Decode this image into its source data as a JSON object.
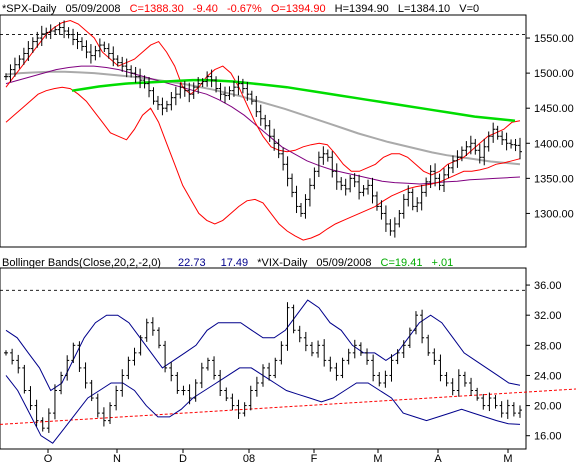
{
  "header_top": {
    "symbol": "*SPX-Daily",
    "date": "05/09/2008",
    "close": "C=1388.30",
    "change": "-9.40",
    "pct": "-0.67%",
    "open": "O=1394.90",
    "high": "H=1394.90",
    "low": "L=1384.10",
    "volume": "V=0",
    "close_color": "#ff0000",
    "change_color": "#ff0000"
  },
  "header_bottom": {
    "indicator": "Bollinger Bands(Close,20,2,-2,0)",
    "upper_val": "22.73",
    "lower_val": "17.49",
    "symbol": "*VIX-Daily",
    "date": "05/09/2008",
    "close": "C=19.41",
    "change": "+.01",
    "value_color": "#00008b",
    "close_color": "#00aa00"
  },
  "colors": {
    "price": "#000000",
    "bollinger": "#ff0000",
    "vix_band": "#00008b",
    "ma_long": "#00dd00",
    "ma_mid": "#aaaaaa",
    "ma_short": "#800080",
    "trendline": "#ff0000"
  },
  "chart_data": [
    {
      "type": "ohlc",
      "name": "SPX-Daily",
      "ylim": [
        1255,
        1580
      ],
      "yticks": [
        "1300.00",
        "1350.00",
        "1400.00",
        "1450.00",
        "1500.00",
        "1550.00"
      ],
      "ytick_values": [
        1300,
        1350,
        1400,
        1450,
        1500,
        1550
      ],
      "reference_line": 1555,
      "close": [
        1495,
        1505,
        1512,
        1520,
        1528,
        1535,
        1545,
        1550,
        1556,
        1558,
        1560,
        1562,
        1565,
        1560,
        1555,
        1548,
        1545,
        1538,
        1530,
        1525,
        1532,
        1540,
        1535,
        1528,
        1520,
        1515,
        1510,
        1505,
        1500,
        1495,
        1490,
        1485,
        1475,
        1460,
        1455,
        1450,
        1455,
        1465,
        1470,
        1480,
        1475,
        1470,
        1480,
        1485,
        1488,
        1495,
        1490,
        1478,
        1470,
        1468,
        1475,
        1480,
        1485,
        1478,
        1470,
        1460,
        1445,
        1435,
        1425,
        1410,
        1400,
        1385,
        1370,
        1350,
        1330,
        1310,
        1300,
        1320,
        1340,
        1360,
        1380,
        1385,
        1380,
        1360,
        1345,
        1340,
        1335,
        1350,
        1345,
        1330,
        1335,
        1340,
        1325,
        1310,
        1300,
        1285,
        1275,
        1285,
        1300,
        1320,
        1330,
        1310,
        1315,
        1330,
        1345,
        1360,
        1350,
        1340,
        1355,
        1365,
        1375,
        1380,
        1390,
        1395,
        1400,
        1390,
        1380,
        1395,
        1410,
        1420,
        1410,
        1405,
        1400,
        1398,
        1397,
        1388
      ],
      "upper_band": [
        1480,
        1495,
        1510,
        1525,
        1540,
        1555,
        1565,
        1572,
        1575,
        1570,
        1560,
        1550,
        1530,
        1520,
        1510,
        1515,
        1520,
        1530,
        1540,
        1545,
        1530,
        1510,
        1480,
        1470,
        1480,
        1495,
        1505,
        1510,
        1500,
        1480,
        1455,
        1430,
        1410,
        1395,
        1390,
        1388,
        1390,
        1395,
        1398,
        1400,
        1398,
        1385,
        1370,
        1360,
        1360,
        1365,
        1370,
        1380,
        1385,
        1385,
        1380,
        1370,
        1360,
        1355,
        1360,
        1370,
        1375,
        1380,
        1390,
        1400,
        1410,
        1415,
        1420,
        1430,
        1432
      ],
      "lower_band": [
        1430,
        1440,
        1450,
        1460,
        1470,
        1475,
        1478,
        1480,
        1478,
        1470,
        1460,
        1445,
        1430,
        1415,
        1410,
        1405,
        1420,
        1440,
        1450,
        1430,
        1400,
        1370,
        1340,
        1320,
        1300,
        1290,
        1285,
        1290,
        1300,
        1310,
        1318,
        1320,
        1315,
        1300,
        1285,
        1275,
        1268,
        1262,
        1265,
        1270,
        1278,
        1285,
        1290,
        1295,
        1300,
        1305,
        1310,
        1318,
        1325,
        1330,
        1335,
        1338,
        1340,
        1342,
        1345,
        1350,
        1355,
        1360,
        1360,
        1362,
        1365,
        1370,
        1372,
        1375,
        1378
      ],
      "ma_long": [
        1475,
        1478,
        1481,
        1483,
        1485,
        1486,
        1487,
        1488,
        1489,
        1490,
        1490,
        1489,
        1488,
        1486,
        1484,
        1482,
        1480,
        1477,
        1474,
        1471,
        1468,
        1465,
        1462,
        1459,
        1456,
        1453,
        1450,
        1447,
        1444,
        1441,
        1438,
        1436,
        1434,
        1432
      ],
      "ma_mid": [
        1498,
        1500,
        1501,
        1502,
        1502,
        1501,
        1500,
        1498,
        1496,
        1494,
        1491,
        1488,
        1485,
        1481,
        1477,
        1472,
        1467,
        1461,
        1455,
        1449,
        1442,
        1435,
        1428,
        1421,
        1414,
        1408,
        1402,
        1397,
        1392,
        1387,
        1383,
        1380,
        1377,
        1374,
        1372,
        1370
      ],
      "ma_short": [
        1485,
        1490,
        1495,
        1500,
        1505,
        1508,
        1510,
        1510,
        1508,
        1505,
        1500,
        1495,
        1490,
        1485,
        1480,
        1475,
        1470,
        1462,
        1452,
        1440,
        1425,
        1410,
        1395,
        1385,
        1375,
        1368,
        1362,
        1358,
        1354,
        1350,
        1346,
        1344,
        1343,
        1342,
        1343,
        1345,
        1346,
        1348,
        1349,
        1350,
        1351,
        1352
      ]
    },
    {
      "type": "ohlc",
      "name": "VIX-Daily",
      "ylim": [
        14.5,
        38
      ],
      "yticks": [
        "16.00",
        "20.00",
        "24.00",
        "28.00",
        "32.00",
        "36.00"
      ],
      "ytick_values": [
        16,
        20,
        24,
        28,
        32,
        36
      ],
      "reference_line": 35.3,
      "close": [
        27,
        26,
        25,
        22,
        20,
        18,
        17,
        19,
        22,
        24,
        26,
        28,
        25,
        23,
        21,
        19,
        18,
        20,
        22,
        24,
        26,
        27,
        29,
        31,
        30,
        28,
        25,
        24,
        22,
        22,
        21,
        23,
        25,
        26,
        24,
        22,
        21,
        20,
        19,
        20,
        22,
        23,
        25,
        24,
        26,
        28,
        33,
        30,
        29,
        28,
        27,
        28,
        26,
        25,
        24,
        26,
        27,
        28,
        27,
        26,
        24,
        23,
        24,
        26,
        27,
        28,
        30,
        32,
        29,
        27,
        26,
        24,
        23,
        22,
        24,
        23,
        22,
        21,
        20,
        21,
        20,
        19,
        20,
        19,
        19.4
      ],
      "upper_band": [
        30,
        29,
        27,
        25,
        22,
        23,
        26,
        29,
        31,
        32,
        32,
        31,
        29,
        27,
        25,
        26,
        27,
        28,
        30,
        31,
        31,
        31,
        30,
        29,
        29,
        30,
        32,
        34,
        33,
        31,
        30,
        28,
        27,
        27,
        26,
        27,
        29,
        31,
        32,
        31,
        29,
        27,
        26,
        25,
        24,
        23,
        22.7
      ],
      "lower_band": [
        24,
        22,
        19,
        16,
        15,
        17,
        19,
        21,
        22,
        23,
        23,
        22,
        20,
        18.5,
        18.5,
        19.5,
        21,
        22,
        23,
        24,
        25,
        25,
        24,
        23,
        22,
        21.5,
        21,
        20.5,
        21,
        22,
        23,
        23,
        22,
        21,
        19,
        18.5,
        18,
        18.5,
        19,
        19.5,
        19,
        18.5,
        18,
        17.6,
        17.5
      ],
      "trendline": [
        [
          0,
          17.5
        ],
        [
          576,
          22.2
        ]
      ]
    }
  ],
  "x_axis": {
    "labels": [
      "O",
      "N",
      "D",
      "08",
      "F",
      "M",
      "A",
      "M"
    ],
    "positions": [
      48,
      117,
      183,
      249,
      314,
      378,
      438,
      508
    ]
  }
}
